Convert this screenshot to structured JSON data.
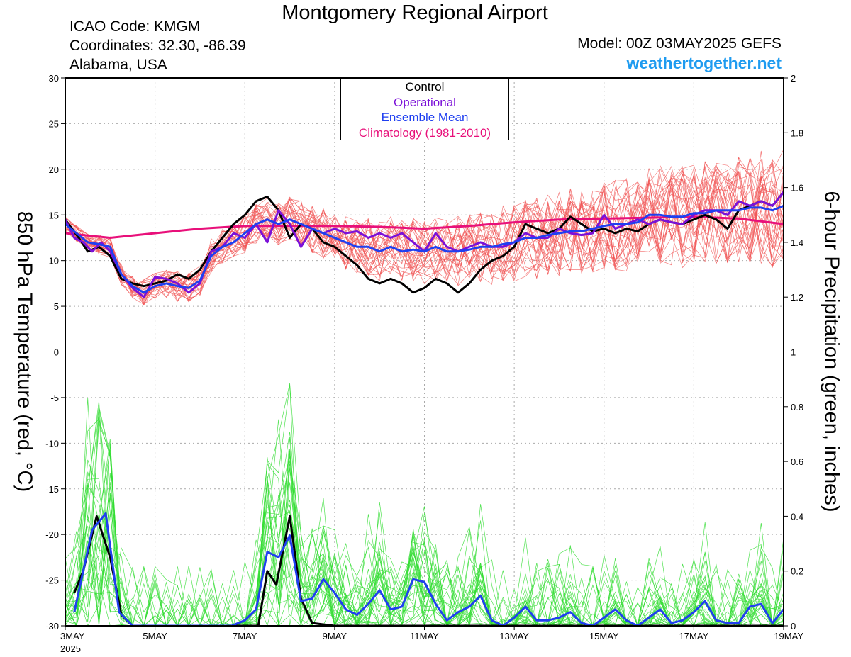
{
  "header": {
    "title": "Montgomery Regional Airport",
    "icao": "ICAO Code: KMGM",
    "coordinates": "Coordinates: 32.30, -86.39",
    "location": "Alabama, USA",
    "model": "Model: 00Z 03MAY2025 GEFS",
    "site": "weathertogether.net"
  },
  "legend": {
    "control": "Control",
    "operational": "Operational",
    "ensemble_mean": "Ensemble Mean",
    "climatology": "Climatology (1981-2010)"
  },
  "colors": {
    "control": "#000000",
    "operational": "#7b10d8",
    "ensemble_mean": "#1f3ff0",
    "climatology": "#e8107a",
    "temp_members": "#f05050",
    "precip_members": "#33dd33"
  },
  "chart_data": {
    "type": "line",
    "y_left_label": "850 hPa Temperature (red, °C)",
    "y_right_label": "6-hour Precipitation (green, inches)",
    "x_day_range": [
      3,
      19
    ],
    "y_left_lim": [
      -30,
      30
    ],
    "y_right_lim": [
      0,
      2
    ],
    "grid": true,
    "legend_position": "top-center",
    "x_ticks": [
      "3MAY",
      "5MAY",
      "7MAY",
      "9MAY",
      "11MAY",
      "13MAY",
      "15MAY",
      "17MAY",
      "19MAY"
    ],
    "x_year": "2025",
    "y_left_ticks": [
      "30",
      "25",
      "20",
      "15",
      "10",
      "5",
      "0",
      "-5",
      "-10",
      "-15",
      "-20",
      "-25",
      "-30"
    ],
    "y_right_ticks": [
      "2",
      "1.8",
      "1.6",
      "1.4",
      "1.2",
      "1",
      "0.8",
      "0.6",
      "0.4",
      "0.2",
      "0"
    ],
    "temp_control": [
      [
        3.0,
        14.5
      ],
      [
        3.3,
        12.5
      ],
      [
        3.5,
        11.0
      ],
      [
        3.75,
        11.5
      ],
      [
        4.0,
        10.5
      ],
      [
        4.25,
        8.0
      ],
      [
        4.5,
        7.5
      ],
      [
        4.75,
        7.2
      ],
      [
        5.0,
        7.5
      ],
      [
        5.25,
        7.8
      ],
      [
        5.5,
        8.5
      ],
      [
        5.75,
        8.0
      ],
      [
        6.0,
        9.0
      ],
      [
        6.25,
        11.0
      ],
      [
        6.5,
        12.5
      ],
      [
        6.75,
        14.0
      ],
      [
        7.0,
        15.0
      ],
      [
        7.25,
        16.5
      ],
      [
        7.5,
        17.0
      ],
      [
        7.75,
        15.5
      ],
      [
        8.0,
        12.5
      ],
      [
        8.25,
        14.0
      ],
      [
        8.5,
        13.5
      ],
      [
        8.75,
        12.0
      ],
      [
        9.0,
        11.5
      ],
      [
        9.25,
        10.5
      ],
      [
        9.5,
        9.5
      ],
      [
        9.75,
        8.0
      ],
      [
        10.0,
        7.5
      ],
      [
        10.25,
        8.0
      ],
      [
        10.5,
        7.5
      ],
      [
        10.75,
        6.5
      ],
      [
        11.0,
        7.0
      ],
      [
        11.25,
        8.0
      ],
      [
        11.5,
        7.5
      ],
      [
        11.75,
        6.5
      ],
      [
        12.0,
        7.5
      ],
      [
        12.25,
        9.0
      ],
      [
        12.5,
        10.0
      ],
      [
        12.75,
        10.5
      ],
      [
        13.0,
        11.5
      ],
      [
        13.25,
        14.0
      ],
      [
        13.5,
        13.5
      ],
      [
        13.75,
        13.0
      ],
      [
        14.0,
        13.5
      ],
      [
        14.25,
        14.8
      ],
      [
        14.5,
        14.0
      ],
      [
        14.75,
        13.2
      ],
      [
        15.0,
        13.5
      ],
      [
        15.25,
        13.0
      ],
      [
        15.5,
        13.5
      ],
      [
        15.75,
        13.2
      ],
      [
        16.0,
        14.0
      ],
      [
        16.25,
        14.5
      ],
      [
        16.5,
        14.2
      ],
      [
        16.75,
        14.0
      ],
      [
        17.0,
        14.5
      ],
      [
        17.25,
        15.0
      ],
      [
        17.5,
        14.5
      ],
      [
        17.75,
        13.5
      ],
      [
        18.0,
        15.5
      ],
      [
        18.25,
        16.0
      ],
      [
        18.5,
        16.5
      ],
      [
        18.75,
        16.0
      ],
      [
        19.0,
        17.5
      ]
    ],
    "temp_operational": [
      [
        3.0,
        14.5
      ],
      [
        3.2,
        12.5
      ],
      [
        3.4,
        12.0
      ],
      [
        3.6,
        11.0
      ],
      [
        3.8,
        12.0
      ],
      [
        4.0,
        11.0
      ],
      [
        4.25,
        8.5
      ],
      [
        4.5,
        7.0
      ],
      [
        4.75,
        6.0
      ],
      [
        5.0,
        8.2
      ],
      [
        5.25,
        8.0
      ],
      [
        5.5,
        7.5
      ],
      [
        5.75,
        6.5
      ],
      [
        6.0,
        7.5
      ],
      [
        6.25,
        11.0
      ],
      [
        6.5,
        11.5
      ],
      [
        6.75,
        13.0
      ],
      [
        7.0,
        12.5
      ],
      [
        7.25,
        14.0
      ],
      [
        7.5,
        12.0
      ],
      [
        7.75,
        15.5
      ],
      [
        8.0,
        14.0
      ],
      [
        8.25,
        11.5
      ],
      [
        8.5,
        13.5
      ],
      [
        8.75,
        13.0
      ],
      [
        9.0,
        13.5
      ],
      [
        9.25,
        13.0
      ],
      [
        9.5,
        13.2
      ],
      [
        9.75,
        12.5
      ],
      [
        10.0,
        13.0
      ],
      [
        10.25,
        12.5
      ],
      [
        10.5,
        13.0
      ],
      [
        10.75,
        12.0
      ],
      [
        11.0,
        11.0
      ],
      [
        11.25,
        13.0
      ],
      [
        11.5,
        11.5
      ],
      [
        11.75,
        11.0
      ],
      [
        12.0,
        11.5
      ],
      [
        12.25,
        12.0
      ],
      [
        12.5,
        11.5
      ],
      [
        12.75,
        11.5
      ],
      [
        13.0,
        12.0
      ],
      [
        13.25,
        13.0
      ],
      [
        13.5,
        12.5
      ],
      [
        13.75,
        12.5
      ],
      [
        14.0,
        13.5
      ],
      [
        14.25,
        13.0
      ],
      [
        14.5,
        12.8
      ],
      [
        14.75,
        13.0
      ],
      [
        15.0,
        15.0
      ],
      [
        15.25,
        13.5
      ],
      [
        15.5,
        14.0
      ],
      [
        15.75,
        14.5
      ],
      [
        16.0,
        14.0
      ],
      [
        16.25,
        14.5
      ],
      [
        16.5,
        14.2
      ],
      [
        16.75,
        14.0
      ],
      [
        17.0,
        15.0
      ],
      [
        17.25,
        15.5
      ],
      [
        17.5,
        15.5
      ],
      [
        17.75,
        15.0
      ],
      [
        18.0,
        16.5
      ],
      [
        18.25,
        16.0
      ],
      [
        18.5,
        16.5
      ],
      [
        18.75,
        16.0
      ],
      [
        19.0,
        17.5
      ]
    ],
    "temp_ensemble_mean": [
      [
        3.0,
        14.0
      ],
      [
        3.25,
        13.0
      ],
      [
        3.5,
        12.0
      ],
      [
        3.75,
        11.8
      ],
      [
        4.0,
        11.5
      ],
      [
        4.25,
        8.5
      ],
      [
        4.5,
        7.2
      ],
      [
        4.75,
        6.5
      ],
      [
        5.0,
        7.2
      ],
      [
        5.25,
        7.5
      ],
      [
        5.5,
        7.2
      ],
      [
        5.75,
        7.0
      ],
      [
        6.0,
        7.8
      ],
      [
        6.25,
        10.5
      ],
      [
        6.5,
        11.5
      ],
      [
        6.75,
        12.0
      ],
      [
        7.0,
        13.0
      ],
      [
        7.25,
        14.0
      ],
      [
        7.5,
        14.5
      ],
      [
        7.75,
        14.0
      ],
      [
        8.0,
        14.5
      ],
      [
        8.25,
        14.0
      ],
      [
        8.5,
        13.5
      ],
      [
        8.75,
        13.0
      ],
      [
        9.0,
        12.5
      ],
      [
        9.25,
        12.0
      ],
      [
        9.5,
        11.5
      ],
      [
        9.75,
        11.5
      ],
      [
        10.0,
        11.0
      ],
      [
        10.25,
        11.5
      ],
      [
        10.5,
        11.0
      ],
      [
        10.75,
        11.2
      ],
      [
        11.0,
        11.0
      ],
      [
        11.25,
        11.5
      ],
      [
        11.5,
        11.0
      ],
      [
        11.75,
        11.0
      ],
      [
        12.0,
        11.2
      ],
      [
        12.25,
        11.5
      ],
      [
        12.5,
        11.5
      ],
      [
        12.75,
        11.8
      ],
      [
        13.0,
        12.0
      ],
      [
        13.25,
        12.5
      ],
      [
        13.5,
        12.5
      ],
      [
        13.75,
        12.8
      ],
      [
        14.0,
        13.0
      ],
      [
        14.25,
        13.2
      ],
      [
        14.5,
        13.2
      ],
      [
        14.75,
        13.5
      ],
      [
        15.0,
        13.8
      ],
      [
        15.25,
        14.0
      ],
      [
        15.5,
        14.0
      ],
      [
        15.75,
        14.2
      ],
      [
        16.0,
        15.0
      ],
      [
        16.25,
        15.0
      ],
      [
        16.5,
        14.8
      ],
      [
        16.75,
        14.8
      ],
      [
        17.0,
        15.2
      ],
      [
        17.25,
        15.2
      ],
      [
        17.5,
        15.5
      ],
      [
        17.75,
        15.5
      ],
      [
        18.0,
        15.5
      ],
      [
        18.25,
        15.8
      ],
      [
        18.5,
        15.8
      ],
      [
        18.75,
        15.5
      ],
      [
        19.0,
        16.0
      ]
    ],
    "temp_climatology": [
      [
        3.0,
        13.0
      ],
      [
        4.0,
        12.5
      ],
      [
        5.0,
        13.0
      ],
      [
        6.0,
        13.5
      ],
      [
        7.0,
        13.8
      ],
      [
        8.0,
        13.8
      ],
      [
        9.0,
        13.8
      ],
      [
        10.0,
        13.7
      ],
      [
        11.0,
        13.5
      ],
      [
        12.0,
        13.8
      ],
      [
        13.0,
        14.2
      ],
      [
        14.0,
        14.5
      ],
      [
        15.0,
        14.6
      ],
      [
        16.0,
        14.7
      ],
      [
        17.0,
        14.8
      ],
      [
        18.0,
        14.6
      ],
      [
        19.0,
        14.0
      ]
    ],
    "precip_control": [
      [
        3.2,
        0.12
      ],
      [
        3.4,
        0.2
      ],
      [
        3.7,
        0.4
      ],
      [
        4.0,
        0.25
      ],
      [
        4.25,
        0.04
      ],
      [
        4.5,
        0.0
      ],
      [
        5.0,
        0.0
      ],
      [
        6.0,
        0.0
      ],
      [
        7.0,
        0.0
      ],
      [
        7.3,
        0.0
      ],
      [
        7.5,
        0.2
      ],
      [
        7.7,
        0.15
      ],
      [
        8.0,
        0.4
      ],
      [
        8.25,
        0.1
      ],
      [
        8.5,
        0.01
      ],
      [
        9.0,
        0.0
      ],
      [
        10.0,
        0.0
      ],
      [
        12.0,
        0.0
      ],
      [
        15.0,
        0.0
      ],
      [
        16.0,
        0.0
      ],
      [
        17.0,
        0.0
      ],
      [
        19.0,
        0.0
      ]
    ],
    "precip_ensemble_mean": [
      [
        3.2,
        0.05
      ],
      [
        3.6,
        0.35
      ],
      [
        3.9,
        0.41
      ],
      [
        4.2,
        0.05
      ],
      [
        4.5,
        0.0
      ],
      [
        5.0,
        0.0
      ],
      [
        6.0,
        0.0
      ],
      [
        6.7,
        0.0
      ],
      [
        7.0,
        0.02
      ],
      [
        7.25,
        0.06
      ],
      [
        7.5,
        0.27
      ],
      [
        7.75,
        0.25
      ],
      [
        8.0,
        0.33
      ],
      [
        8.25,
        0.09
      ],
      [
        8.5,
        0.1
      ],
      [
        8.75,
        0.17
      ],
      [
        9.0,
        0.12
      ],
      [
        9.25,
        0.06
      ],
      [
        9.5,
        0.04
      ],
      [
        9.75,
        0.08
      ],
      [
        10.0,
        0.13
      ],
      [
        10.25,
        0.06
      ],
      [
        10.5,
        0.07
      ],
      [
        10.75,
        0.17
      ],
      [
        11.0,
        0.16
      ],
      [
        11.25,
        0.08
      ],
      [
        11.5,
        0.02
      ],
      [
        11.75,
        0.05
      ],
      [
        12.0,
        0.07
      ],
      [
        12.25,
        0.11
      ],
      [
        12.5,
        0.02
      ],
      [
        12.75,
        0.0
      ],
      [
        13.0,
        0.03
      ],
      [
        13.25,
        0.07
      ],
      [
        13.5,
        0.02
      ],
      [
        13.75,
        0.02
      ],
      [
        14.0,
        0.03
      ],
      [
        14.25,
        0.05
      ],
      [
        14.5,
        0.01
      ],
      [
        14.75,
        0.0
      ],
      [
        15.0,
        0.03
      ],
      [
        15.25,
        0.06
      ],
      [
        15.5,
        0.02
      ],
      [
        15.75,
        0.0
      ],
      [
        16.0,
        0.03
      ],
      [
        16.25,
        0.06
      ],
      [
        16.5,
        0.01
      ],
      [
        16.75,
        0.02
      ],
      [
        17.0,
        0.05
      ],
      [
        17.25,
        0.09
      ],
      [
        17.5,
        0.02
      ],
      [
        17.75,
        0.01
      ],
      [
        18.0,
        0.01
      ],
      [
        18.25,
        0.07
      ],
      [
        18.5,
        0.08
      ],
      [
        18.75,
        0.01
      ],
      [
        19.0,
        0.06
      ]
    ]
  }
}
